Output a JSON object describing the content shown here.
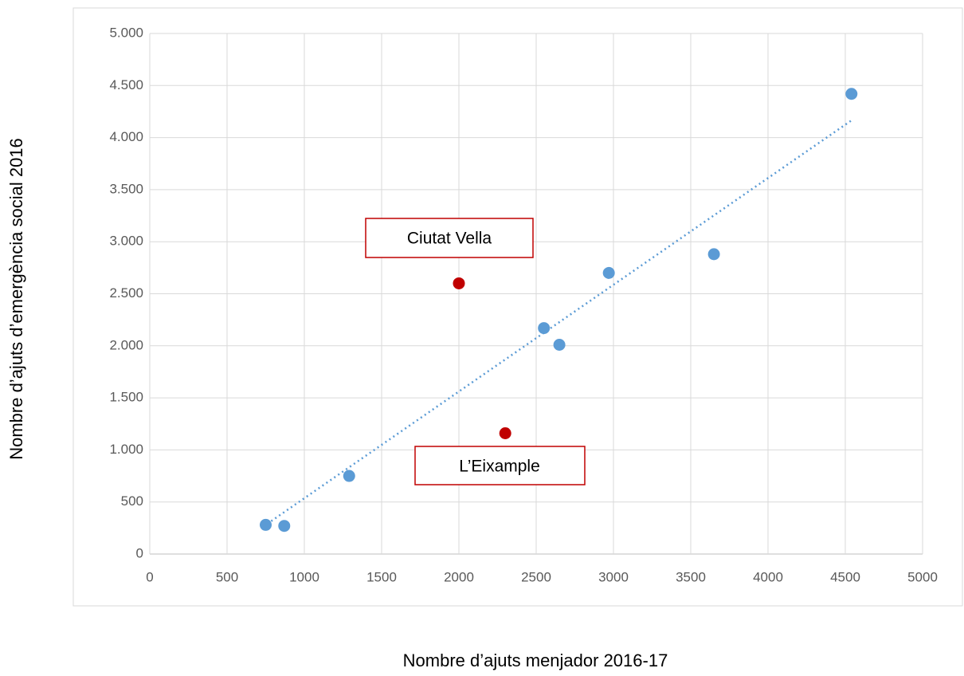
{
  "chart_data": {
    "type": "scatter",
    "x_label": "Nombre d’ajuts menjador 2016-17",
    "y_label": "Nombre d’ajuts d’emergència social 2016",
    "xlim": [
      0,
      5000
    ],
    "xticks": [
      0,
      500,
      1000,
      1500,
      2000,
      2500,
      3000,
      3500,
      4000,
      4500,
      5000
    ],
    "ylim": [
      0,
      5000
    ],
    "yticks": [
      0,
      500,
      {
        "value": 1000,
        "label": "1.000"
      },
      {
        "value": 1500,
        "label": "1.500"
      },
      {
        "value": 2000,
        "label": "2.000"
      },
      {
        "value": 2500,
        "label": "2.500"
      },
      {
        "value": 3000,
        "label": "3.000"
      },
      {
        "value": 3500,
        "label": "3.500"
      },
      {
        "value": 4000,
        "label": "4.000"
      },
      {
        "value": 4500,
        "label": "4.500"
      },
      {
        "value": 5000,
        "label": "5.000"
      }
    ],
    "grid": true,
    "series": [
      {
        "color": "#5b9bd5",
        "x": [
          750,
          870,
          1290,
          2550,
          2650,
          2970,
          3650,
          4540
        ],
        "values": [
          280,
          270,
          750,
          2170,
          2010,
          2700,
          2880,
          4420
        ]
      },
      {
        "color": "#c00000",
        "x": [
          2000,
          2300
        ],
        "values": [
          2600,
          1160
        ]
      }
    ],
    "trendline": {
      "color": "#5b9bd5",
      "x": [
        760,
        4540
      ],
      "values": [
        290,
        4165
      ]
    },
    "annotations": [
      "Ciutat Vella",
      "L’Eixample"
    ]
  }
}
